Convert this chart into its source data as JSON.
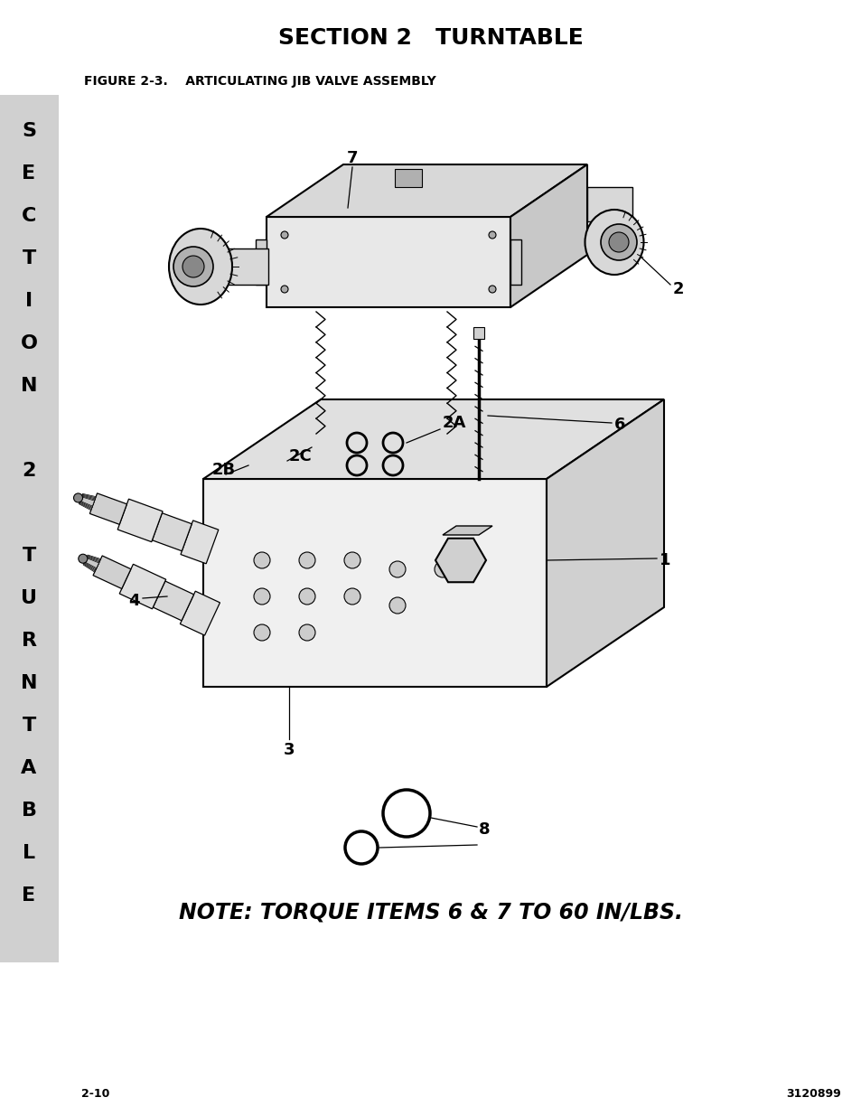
{
  "title": "SECTION 2   TURNTABLE",
  "figure_label": "FIGURE 2-3.    ARTICULATING JIB VALVE ASSEMBLY",
  "note_text": "NOTE: TORQUE ITEMS 6 & 7 TO 60 IN/LBS.",
  "page_left": "2-10",
  "page_right": "3120899",
  "sidebar_bg": "#d0d0d0",
  "bg_color": "#ffffff",
  "title_fontsize": 18,
  "figure_label_fontsize": 10,
  "note_fontsize": 17,
  "page_fontsize": 9,
  "sidebar_fontsize": 16
}
